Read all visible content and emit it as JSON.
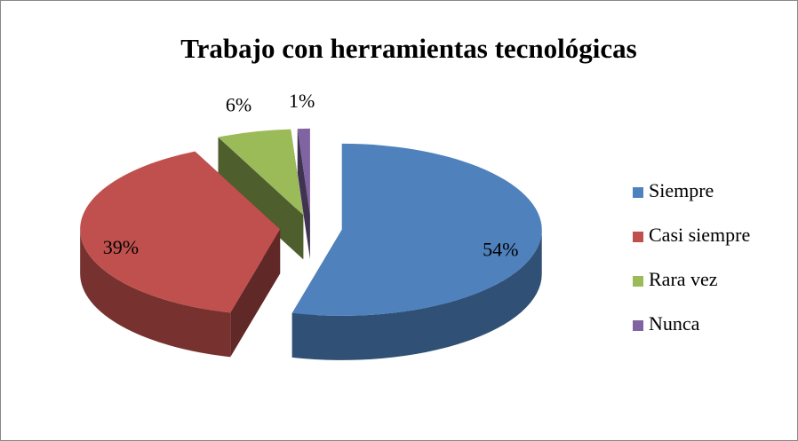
{
  "chart_data": {
    "type": "pie3d",
    "title": "Trabajo con herramientas tecnológicas",
    "categories": [
      "Siempre",
      "Casi siempre",
      "Rara vez",
      "Nunca"
    ],
    "values": [
      54,
      39,
      6,
      1
    ],
    "value_labels": [
      "54%",
      "39%",
      "6%",
      "1%"
    ],
    "colors": [
      "#4f81bd",
      "#c0504d",
      "#9bbb59",
      "#8064a2"
    ],
    "legend": "right"
  }
}
